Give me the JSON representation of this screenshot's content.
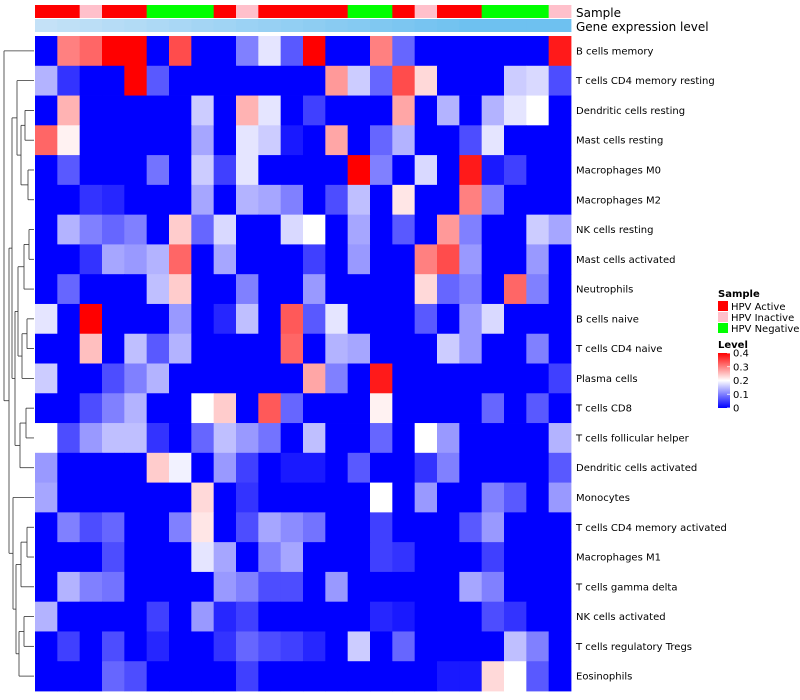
{
  "chart_data": {
    "type": "heatmap",
    "title": "",
    "color_scale": {
      "min": 0,
      "max": 0.4,
      "low": "#0000ff",
      "mid": "#ffffff",
      "high": "#ff0000",
      "mid_value": 0.2
    },
    "columns": 24,
    "annotations": {
      "sample": {
        "label": "Sample",
        "values": [
          "HPV Active",
          "HPV Active",
          "HPV Inactive",
          "HPV Active",
          "HPV Active",
          "HPV Negative",
          "HPV Negative",
          "HPV Negative",
          "HPV Active",
          "HPV Inactive",
          "HPV Active",
          "HPV Active",
          "HPV Active",
          "HPV Active",
          "HPV Negative",
          "HPV Negative",
          "HPV Active",
          "HPV Inactive",
          "HPV Active",
          "HPV Active",
          "HPV Negative",
          "HPV Negative",
          "HPV Negative",
          "HPV Inactive"
        ]
      },
      "expression": {
        "label": "Gene expression level",
        "values": [
          0.05,
          0.1,
          0.15,
          0.2,
          0.25,
          0.3,
          0.35,
          0.4,
          0.45,
          0.5,
          0.55,
          0.6,
          0.65,
          0.7,
          0.75,
          0.8,
          0.85,
          0.9,
          0.95,
          1.0,
          1.0,
          1.0,
          1.0,
          1.0
        ]
      }
    },
    "rows": [
      {
        "label": "B cells memory",
        "values": [
          0,
          0.3,
          0.32,
          0.4,
          0.4,
          0,
          0.34,
          0,
          0,
          0.1,
          0.18,
          0.07,
          0.4,
          0,
          0,
          0.3,
          0.08,
          0,
          0,
          0,
          0,
          0,
          0,
          0.38
        ]
      },
      {
        "label": "T cells CD4 memory resting",
        "values": [
          0.14,
          0.04,
          0,
          0,
          0.4,
          0.07,
          0,
          0,
          0,
          0,
          0,
          0,
          0,
          0.28,
          0.16,
          0.08,
          0.34,
          0.23,
          0,
          0,
          0,
          0.16,
          0.17,
          0.06
        ]
      },
      {
        "label": "Dendritic cells resting",
        "values": [
          0,
          0.26,
          0,
          0,
          0,
          0,
          0,
          0.16,
          0,
          0.26,
          0.18,
          0,
          0.05,
          0,
          0,
          0,
          0.27,
          0,
          0.14,
          0,
          0.14,
          0.18,
          0.2,
          0
        ]
      },
      {
        "label": "Mast cells resting",
        "values": [
          0.32,
          0.21,
          0,
          0,
          0,
          0,
          0,
          0.13,
          0,
          0.18,
          0.16,
          0.02,
          0,
          0.27,
          0,
          0.08,
          0.14,
          0,
          0,
          0.06,
          0.18,
          0,
          0,
          0
        ]
      },
      {
        "label": "Macrophages M0",
        "values": [
          0,
          0.07,
          0,
          0,
          0,
          0.09,
          0,
          0.16,
          0.05,
          0.18,
          0,
          0,
          0,
          0,
          0.4,
          0.1,
          0,
          0.17,
          0,
          0.38,
          0.02,
          0.05,
          0,
          0
        ]
      },
      {
        "label": "Macrophages M2",
        "values": [
          0,
          0,
          0.04,
          0.03,
          0,
          0,
          0,
          0.13,
          0,
          0.14,
          0.13,
          0.1,
          0,
          0.06,
          0.15,
          0,
          0.22,
          0,
          0,
          0.3,
          0.1,
          0,
          0,
          0
        ]
      },
      {
        "label": "NK cells resting",
        "values": [
          0,
          0.14,
          0.1,
          0.08,
          0.1,
          0,
          0.24,
          0.08,
          0.17,
          0,
          0,
          0.17,
          0.2,
          0,
          0.13,
          0,
          0.07,
          0,
          0.28,
          0.1,
          0,
          0,
          0.16,
          0.13
        ]
      },
      {
        "label": "Mast cells activated",
        "values": [
          0,
          0,
          0.04,
          0.13,
          0.12,
          0.14,
          0.32,
          0,
          0.13,
          0,
          0,
          0,
          0.05,
          0,
          0.12,
          0,
          0,
          0.3,
          0.34,
          0.12,
          0,
          0,
          0.12,
          0
        ]
      },
      {
        "label": "Neutrophils",
        "values": [
          0,
          0.08,
          0,
          0,
          0,
          0.15,
          0.24,
          0,
          0,
          0.1,
          0,
          0,
          0.12,
          0,
          0,
          0,
          0,
          0.23,
          0.08,
          0.1,
          0,
          0.32,
          0.1,
          0
        ]
      },
      {
        "label": "B cells naive",
        "values": [
          0.18,
          0,
          0.4,
          0,
          0,
          0,
          0.12,
          0,
          0.03,
          0.15,
          0,
          0.33,
          0.07,
          0.18,
          0,
          0,
          0,
          0.07,
          0,
          0.12,
          0.17,
          0,
          0,
          0
        ]
      },
      {
        "label": "T cells CD4 naive",
        "values": [
          0,
          0,
          0.25,
          0,
          0.15,
          0.07,
          0.14,
          0,
          0,
          0,
          0,
          0.32,
          0,
          0.14,
          0.13,
          0,
          0,
          0,
          0.16,
          0.12,
          0,
          0,
          0.1,
          0
        ]
      },
      {
        "label": "Plasma cells",
        "values": [
          0.16,
          0,
          0,
          0.06,
          0.1,
          0.14,
          0,
          0,
          0,
          0,
          0,
          0,
          0.27,
          0.1,
          0,
          0.38,
          0,
          0,
          0,
          0,
          0,
          0,
          0,
          0.05
        ]
      },
      {
        "label": "T cells CD8",
        "values": [
          0,
          0,
          0.06,
          0.1,
          0.14,
          0,
          0,
          0.2,
          0.24,
          0,
          0.33,
          0.08,
          0,
          0,
          0,
          0.21,
          0,
          0,
          0,
          0,
          0.08,
          0,
          0.07,
          0
        ]
      },
      {
        "label": "T cells follicular helper",
        "values": [
          0.2,
          0.06,
          0.12,
          0.15,
          0.15,
          0.04,
          0,
          0.08,
          0.15,
          0.12,
          0.09,
          0,
          0.15,
          0,
          0,
          0.08,
          0,
          0.2,
          0.12,
          0,
          0,
          0,
          0,
          0.14
        ]
      },
      {
        "label": "Dendritic cells activated",
        "values": [
          0.12,
          0,
          0,
          0,
          0,
          0.24,
          0.19,
          0,
          0.12,
          0.05,
          0,
          0.02,
          0.02,
          0,
          0.07,
          0,
          0,
          0.04,
          0.1,
          0,
          0,
          0,
          0,
          0.07
        ]
      },
      {
        "label": "Monocytes",
        "values": [
          0.13,
          0,
          0,
          0,
          0,
          0,
          0,
          0.23,
          0,
          0.04,
          0,
          0,
          0,
          0,
          0,
          0.2,
          0,
          0.12,
          0,
          0,
          0.1,
          0.07,
          0,
          0.12
        ]
      },
      {
        "label": "T cells CD4 memory activated",
        "values": [
          0,
          0.1,
          0.06,
          0.08,
          0,
          0,
          0.1,
          0.22,
          0,
          0.06,
          0.13,
          0.11,
          0.09,
          0,
          0,
          0.05,
          0,
          0,
          0,
          0.07,
          0.12,
          0,
          0,
          0
        ]
      },
      {
        "label": "Macrophages M1",
        "values": [
          0,
          0,
          0,
          0.06,
          0,
          0,
          0,
          0.18,
          0.13,
          0,
          0.1,
          0.13,
          0,
          0,
          0,
          0.05,
          0.04,
          0,
          0,
          0,
          0.05,
          0,
          0,
          0
        ]
      },
      {
        "label": "T cells gamma delta",
        "values": [
          0,
          0.14,
          0.1,
          0.09,
          0,
          0,
          0,
          0,
          0.12,
          0.1,
          0.06,
          0.06,
          0,
          0.12,
          0,
          0,
          0,
          0,
          0,
          0.13,
          0.1,
          0,
          0,
          0
        ]
      },
      {
        "label": "NK cells activated",
        "values": [
          0.14,
          0,
          0,
          0,
          0,
          0.05,
          0,
          0.12,
          0.03,
          0.05,
          0,
          0,
          0,
          0,
          0,
          0.03,
          0.02,
          0,
          0,
          0,
          0.06,
          0.04,
          0,
          0
        ]
      },
      {
        "label": "T cells regulatory  Tregs",
        "values": [
          0,
          0.05,
          0,
          0.06,
          0,
          0.03,
          0,
          0,
          0.04,
          0.08,
          0.06,
          0.05,
          0.03,
          0,
          0.16,
          0,
          0.08,
          0,
          0,
          0,
          0,
          0.15,
          0.1,
          0
        ]
      },
      {
        "label": "Eosinophils",
        "values": [
          0,
          0,
          0,
          0.08,
          0.06,
          0,
          0,
          0,
          0,
          0.05,
          0,
          0,
          0,
          0,
          0,
          0,
          0,
          0,
          0.02,
          0.02,
          0.23,
          0.2,
          0.07,
          0
        ]
      }
    ]
  },
  "legend": {
    "sample": {
      "title": "Sample",
      "entries": [
        {
          "label": "HPV Active",
          "color": "#ff0000"
        },
        {
          "label": "HPV Inactive",
          "color": "#ffc0cb"
        },
        {
          "label": "HPV Negative",
          "color": "#00ff00"
        }
      ]
    },
    "level": {
      "title": "Level",
      "ticks": [
        0.4,
        0.3,
        0.2,
        0.1,
        0
      ],
      "tick_labels": [
        "0.4",
        "0.3",
        "0.2",
        "0.1",
        "0"
      ]
    }
  },
  "colors": {
    "expression_low": "#c8e3f7",
    "expression_high": "#6ec1f0"
  }
}
